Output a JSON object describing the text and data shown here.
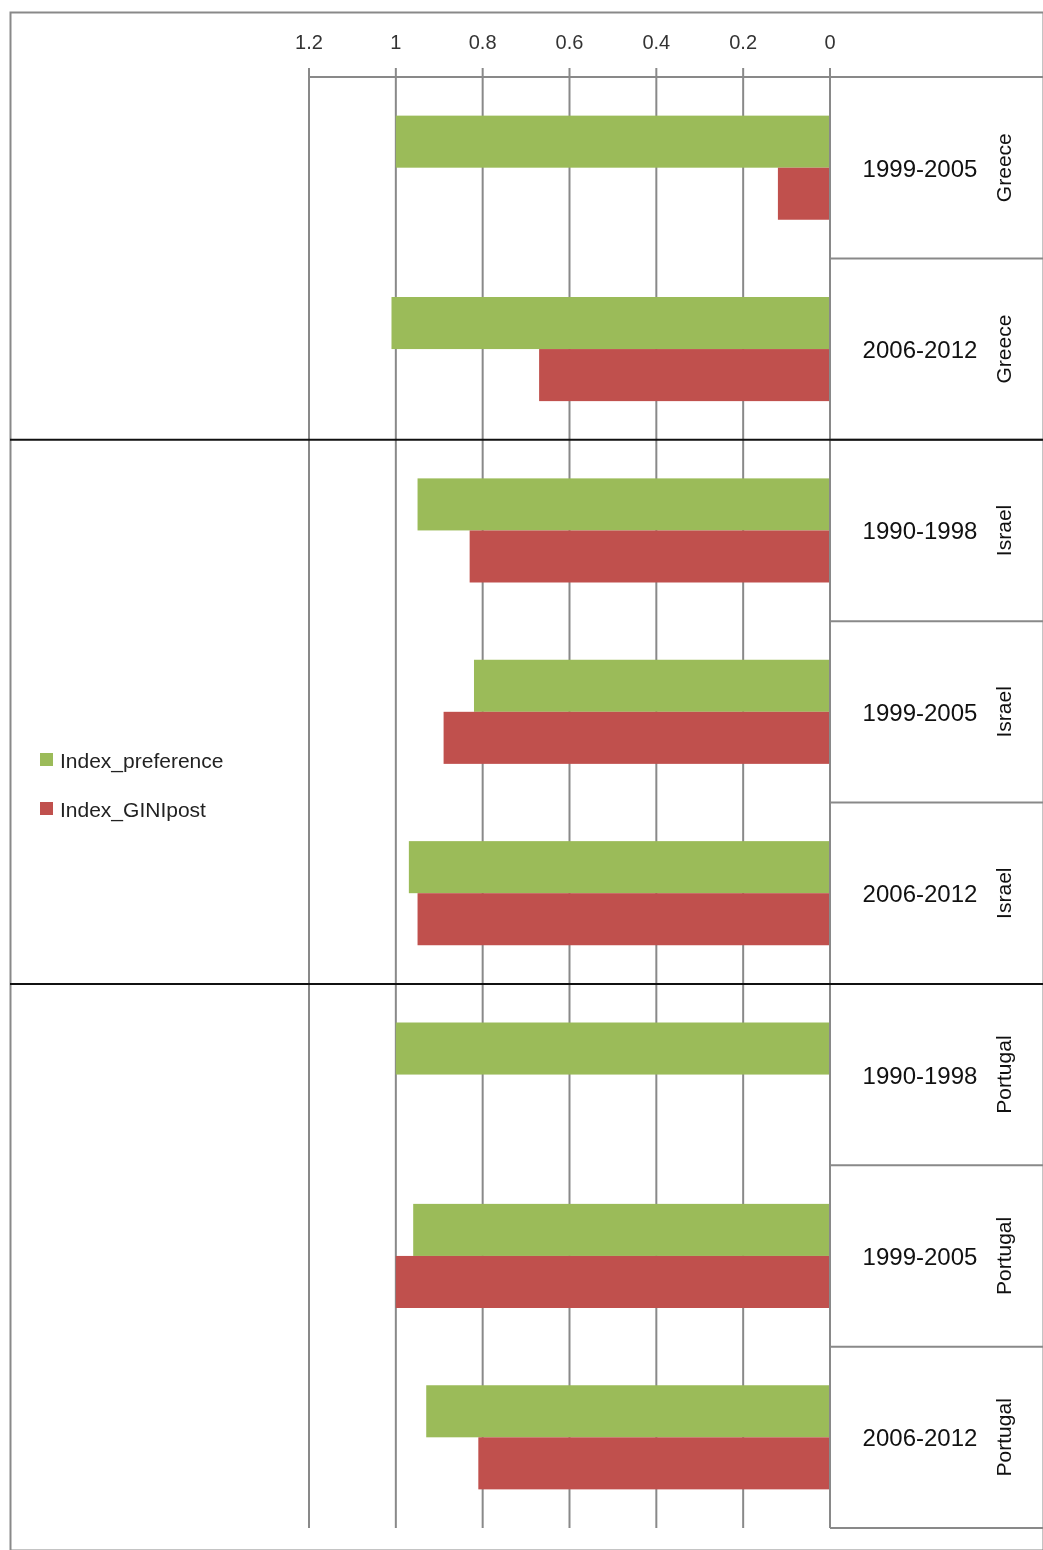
{
  "chart_data": {
    "type": "bar",
    "orientation": "horizontal",
    "categories": [
      "1999-2005",
      "2006-2012",
      "1990-1998",
      "1999-2005",
      "2006-2012",
      "1990-1998",
      "1999-2005",
      "2006-2012"
    ],
    "y2_categories": [
      "Greece",
      "Greece",
      "Israel",
      "Israel",
      "Israel",
      "Portugal",
      "Portugal",
      "Portugal"
    ],
    "series": [
      {
        "name": "Index_preference",
        "color": "#9bbb59",
        "values": [
          1.0,
          1.01,
          0.95,
          0.82,
          0.97,
          1.0,
          0.96,
          0.93
        ]
      },
      {
        "name": "Index_GINIpost",
        "color": "#c0504d",
        "values": [
          0.12,
          0.67,
          0.83,
          0.89,
          0.95,
          null,
          1.0,
          0.81
        ]
      }
    ],
    "xlim": [
      1.2,
      0
    ],
    "xticks": [
      1.2,
      1,
      0.8,
      0.6,
      0.4,
      0.2,
      0
    ],
    "grid": "x",
    "legend": "left"
  }
}
